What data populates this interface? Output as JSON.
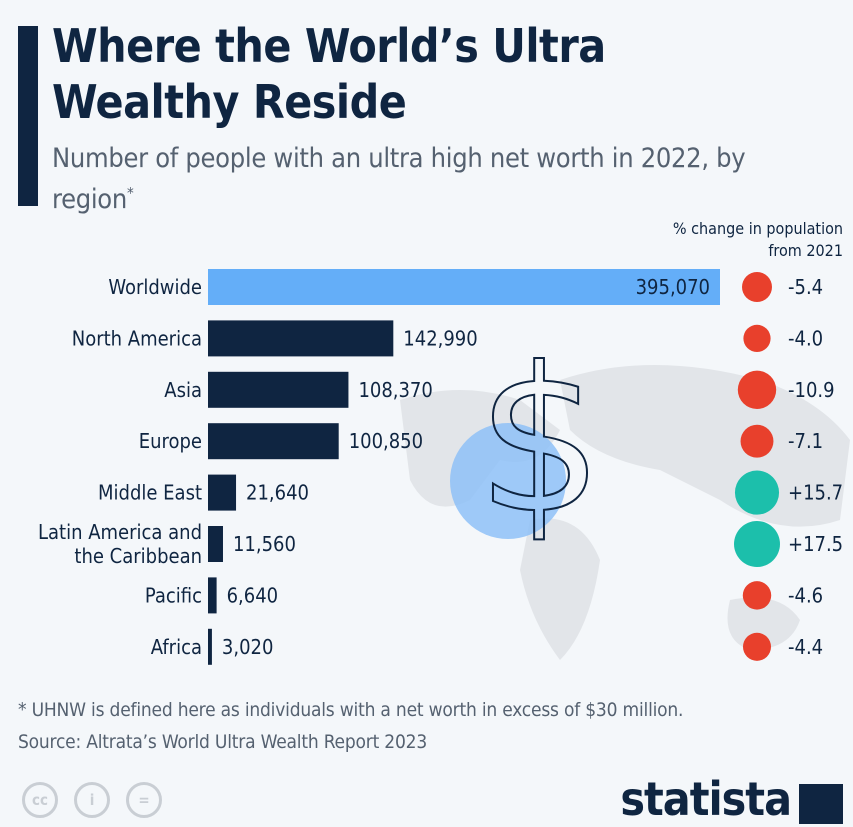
{
  "title": "Where the World’s Ultra Wealthy Reside",
  "subtitle": "Number of people with an ultra high net worth in 2022, by region",
  "subtitle_mark": "*",
  "change_header_line1": "% change in population",
  "change_header_line2": "from 2021",
  "footnote": "* UHNW is defined here as individuals with a net worth in excess of $30 million.",
  "source": "Source: Altrata’s World Ultra Wealth Report 2023",
  "brand": "statista",
  "license_icons": [
    "cc-icon",
    "attribution-icon",
    "no-derivatives-icon"
  ],
  "colors": {
    "worldwide_bar": "#64aef8",
    "region_bar": "#0f2541",
    "negative": "#e8402c",
    "positive": "#1cbfab"
  },
  "chart_data": {
    "type": "bar",
    "orientation": "horizontal",
    "categories": [
      "Worldwide",
      "North America",
      "Asia",
      "Europe",
      "Middle East",
      "Latin America and the Caribbean",
      "Pacific",
      "Africa"
    ],
    "category_lines": [
      [
        "Worldwide"
      ],
      [
        "North America"
      ],
      [
        "Asia"
      ],
      [
        "Europe"
      ],
      [
        "Middle East"
      ],
      [
        "Latin America and",
        "the Caribbean"
      ],
      [
        "Pacific"
      ],
      [
        "Africa"
      ]
    ],
    "values": [
      395070,
      142990,
      108370,
      100850,
      21640,
      11560,
      6640,
      3020
    ],
    "value_labels": [
      "395,070",
      "142,990",
      "108,370",
      "100,850",
      "21,640",
      "11,560",
      "6,640",
      "3,020"
    ],
    "pct_change": [
      -5.4,
      -4.0,
      -10.9,
      -7.1,
      15.7,
      17.5,
      -4.6,
      -4.4
    ],
    "pct_change_labels": [
      "-5.4",
      "-4.0",
      "-10.9",
      "-7.1",
      "+15.7",
      "+17.5",
      "-4.6",
      "-4.4"
    ],
    "grid": false
  }
}
